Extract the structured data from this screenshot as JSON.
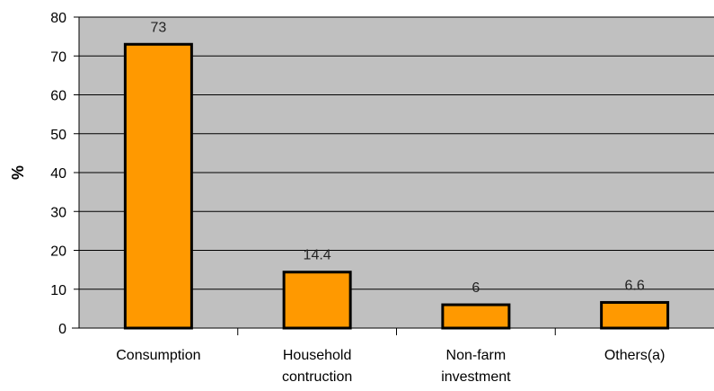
{
  "chart_data": {
    "type": "bar",
    "categories": [
      [
        "Consumption"
      ],
      [
        "Household",
        "contruction"
      ],
      [
        "Non-farm",
        "investment"
      ],
      [
        "Others(a)"
      ]
    ],
    "values": [
      73,
      14.4,
      6,
      6.6
    ],
    "data_labels": [
      "73",
      "14.4",
      "6",
      "6.6"
    ],
    "ylabel": "%",
    "ylim": [
      0,
      80
    ],
    "yticks": [
      0,
      10,
      20,
      30,
      40,
      50,
      60,
      70,
      80
    ],
    "grid": true,
    "legend": "none",
    "colors": {
      "bar_fill": "#FF9900",
      "bar_stroke": "#000000",
      "plot_background": "#C0C0C0",
      "gridline": "#000000"
    }
  }
}
